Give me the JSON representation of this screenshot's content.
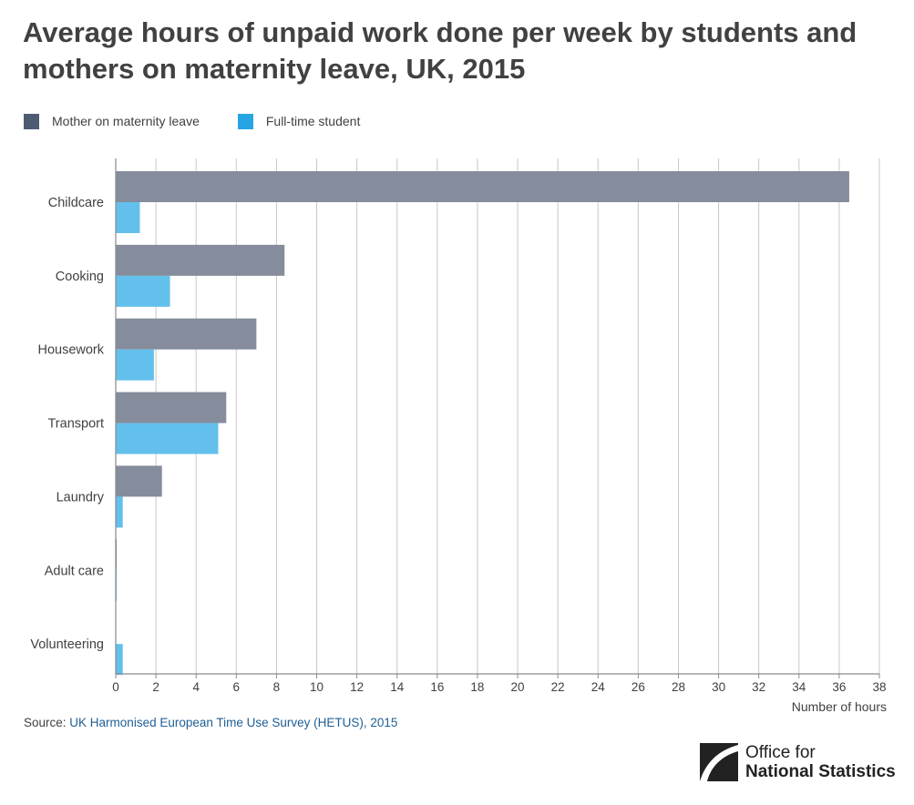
{
  "title": "Average hours of unpaid work done per week by students and mothers on maternity leave, UK, 2015",
  "legend": [
    {
      "label": "Mother on maternity leave",
      "color": "#4e5c73"
    },
    {
      "label": "Full-time student",
      "color": "#27a5e3"
    }
  ],
  "chart_data": {
    "type": "bar",
    "orientation": "horizontal",
    "categories": [
      "Childcare",
      "Cooking",
      "Housework",
      "Transport",
      "Laundry",
      "Adult care",
      "Volunteering"
    ],
    "series": [
      {
        "name": "Mother on maternity leave",
        "color": "#858c9b",
        "values": [
          36.5,
          8.4,
          7.0,
          5.5,
          2.3,
          0.05,
          0.0
        ]
      },
      {
        "name": "Full-time student",
        "color": "#63c0ec",
        "values": [
          1.2,
          2.7,
          1.9,
          5.1,
          0.35,
          0.05,
          0.35
        ]
      }
    ],
    "xlabel": "Number of hours",
    "xlim": [
      0,
      38
    ],
    "xticks": [
      0,
      2,
      4,
      6,
      8,
      10,
      12,
      14,
      16,
      18,
      20,
      22,
      24,
      26,
      28,
      30,
      32,
      34,
      36,
      38
    ],
    "grid": true,
    "legend_position": "top-left"
  },
  "source": {
    "label": "Source:",
    "link_text": "UK Harmonised European Time Use Survey (HETUS), 2015"
  },
  "logo": {
    "line1": "Office for",
    "line2": "National Statistics"
  }
}
